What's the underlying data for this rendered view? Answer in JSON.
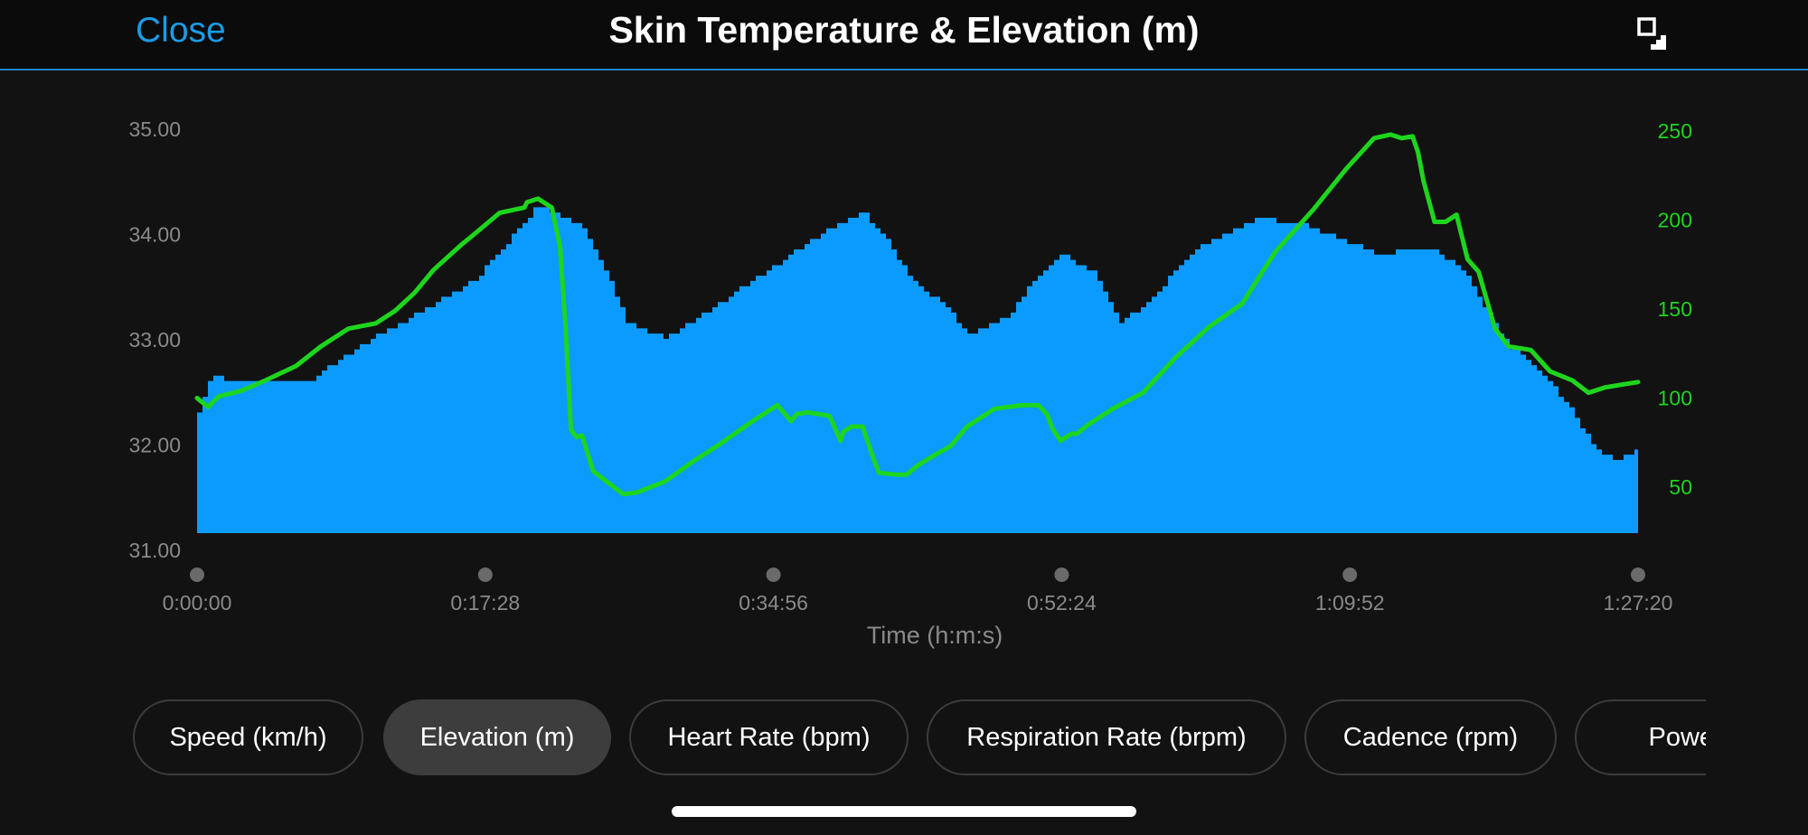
{
  "header": {
    "close_label": "Close",
    "title": "Skin Temperature & Elevation (m)",
    "expand_icon": "expand-icon"
  },
  "chips": [
    {
      "label": "Speed (km/h)",
      "active": false
    },
    {
      "label": "Elevation (m)",
      "active": true
    },
    {
      "label": "Heart Rate (bpm)",
      "active": false
    },
    {
      "label": "Respiration Rate (brpm)",
      "active": false
    },
    {
      "label": "Cadence (rpm)",
      "active": false
    },
    {
      "label": "Power (W)",
      "active": false
    }
  ],
  "chart_data": {
    "type": "area",
    "title": "Skin Temperature & Elevation (m)",
    "xlabel": "Time (h:m:s)",
    "x_ticks": [
      "0:00:00",
      "0:17:28",
      "0:34:56",
      "0:52:24",
      "1:09:52",
      "1:27:20"
    ],
    "x_range_seconds": [
      0,
      5240
    ],
    "left_axis": {
      "ylim": [
        31.0,
        35.0
      ],
      "ticks": [
        "31.00",
        "32.00",
        "33.00",
        "34.00",
        "35.00"
      ]
    },
    "right_axis": {
      "ylim": [
        25,
        255
      ],
      "ticks": [
        "50",
        "100",
        "150",
        "200",
        "250"
      ]
    },
    "series": [
      {
        "axis": "left",
        "color": "#0b9bff",
        "kind": "area",
        "x": [
          0,
          30,
          60,
          120,
          200,
          300,
          400,
          600,
          800,
          1000,
          1120,
          1230,
          1300,
          1400,
          1480,
          1560,
          1700,
          1900,
          2100,
          2180,
          2300,
          2420,
          2500,
          2600,
          2700,
          2800,
          2940,
          3050,
          3140,
          3250,
          3350,
          3450,
          3520,
          3620,
          3700,
          3850,
          4000,
          4150,
          4250,
          4300,
          4400,
          4480,
          4520,
          4600,
          4680,
          4760,
          4900,
          5000,
          5080,
          5150,
          5240
        ],
        "y": [
          32.3,
          32.55,
          32.65,
          32.6,
          32.6,
          32.6,
          32.6,
          32.95,
          33.25,
          33.55,
          33.9,
          34.25,
          34.2,
          34.05,
          33.65,
          33.15,
          33.0,
          33.35,
          33.7,
          33.85,
          34.05,
          34.2,
          33.95,
          33.55,
          33.35,
          33.05,
          33.2,
          33.6,
          33.8,
          33.65,
          33.15,
          33.35,
          33.55,
          33.85,
          33.95,
          34.15,
          34.1,
          33.95,
          33.85,
          33.8,
          33.85,
          33.85,
          33.8,
          33.65,
          33.3,
          32.95,
          32.65,
          32.3,
          31.95,
          31.85,
          31.95
        ]
      },
      {
        "axis": "right",
        "color": "#1ed51e",
        "kind": "line",
        "x": [
          0,
          40,
          80,
          160,
          250,
          360,
          450,
          550,
          650,
          720,
          790,
          860,
          960,
          1000,
          1100,
          1190,
          1200,
          1240,
          1290,
          1320,
          1340,
          1350,
          1360,
          1380,
          1400,
          1440,
          1490,
          1550,
          1600,
          1700,
          1800,
          1900,
          2020,
          2110,
          2160,
          2180,
          2220,
          2300,
          2340,
          2350,
          2380,
          2420,
          2460,
          2480,
          2540,
          2580,
          2620,
          2660,
          2740,
          2800,
          2900,
          3000,
          3060,
          3090,
          3110,
          3140,
          3180,
          3200,
          3240,
          3330,
          3440,
          3560,
          3680,
          3800,
          3920,
          4060,
          4180,
          4280,
          4340,
          4380,
          4420,
          4440,
          4460,
          4500,
          4540,
          4580,
          4620,
          4660,
          4720,
          4770,
          4810,
          4850,
          4920,
          5000,
          5060,
          5120,
          5160,
          5200,
          5240
        ],
        "y": [
          100,
          95,
          101,
          104,
          110,
          118,
          129,
          139,
          142,
          149,
          159,
          172,
          186,
          191,
          204,
          207,
          210,
          212,
          207,
          185,
          140,
          110,
          82,
          78,
          79,
          59,
          53,
          46,
          47,
          53,
          64,
          74,
          87,
          96,
          87,
          91,
          92,
          90,
          76,
          81,
          84,
          84,
          66,
          58,
          57,
          57,
          62,
          66,
          73,
          84,
          94,
          96,
          96,
          91,
          83,
          76,
          80,
          80,
          85,
          94,
          103,
          123,
          140,
          153,
          182,
          206,
          229,
          246,
          248,
          246,
          247,
          238,
          222,
          199,
          199,
          203,
          178,
          171,
          139,
          129,
          128,
          127,
          115,
          110,
          103,
          106,
          107,
          108,
          109
        ]
      }
    ],
    "grid": false,
    "legend": "none"
  }
}
